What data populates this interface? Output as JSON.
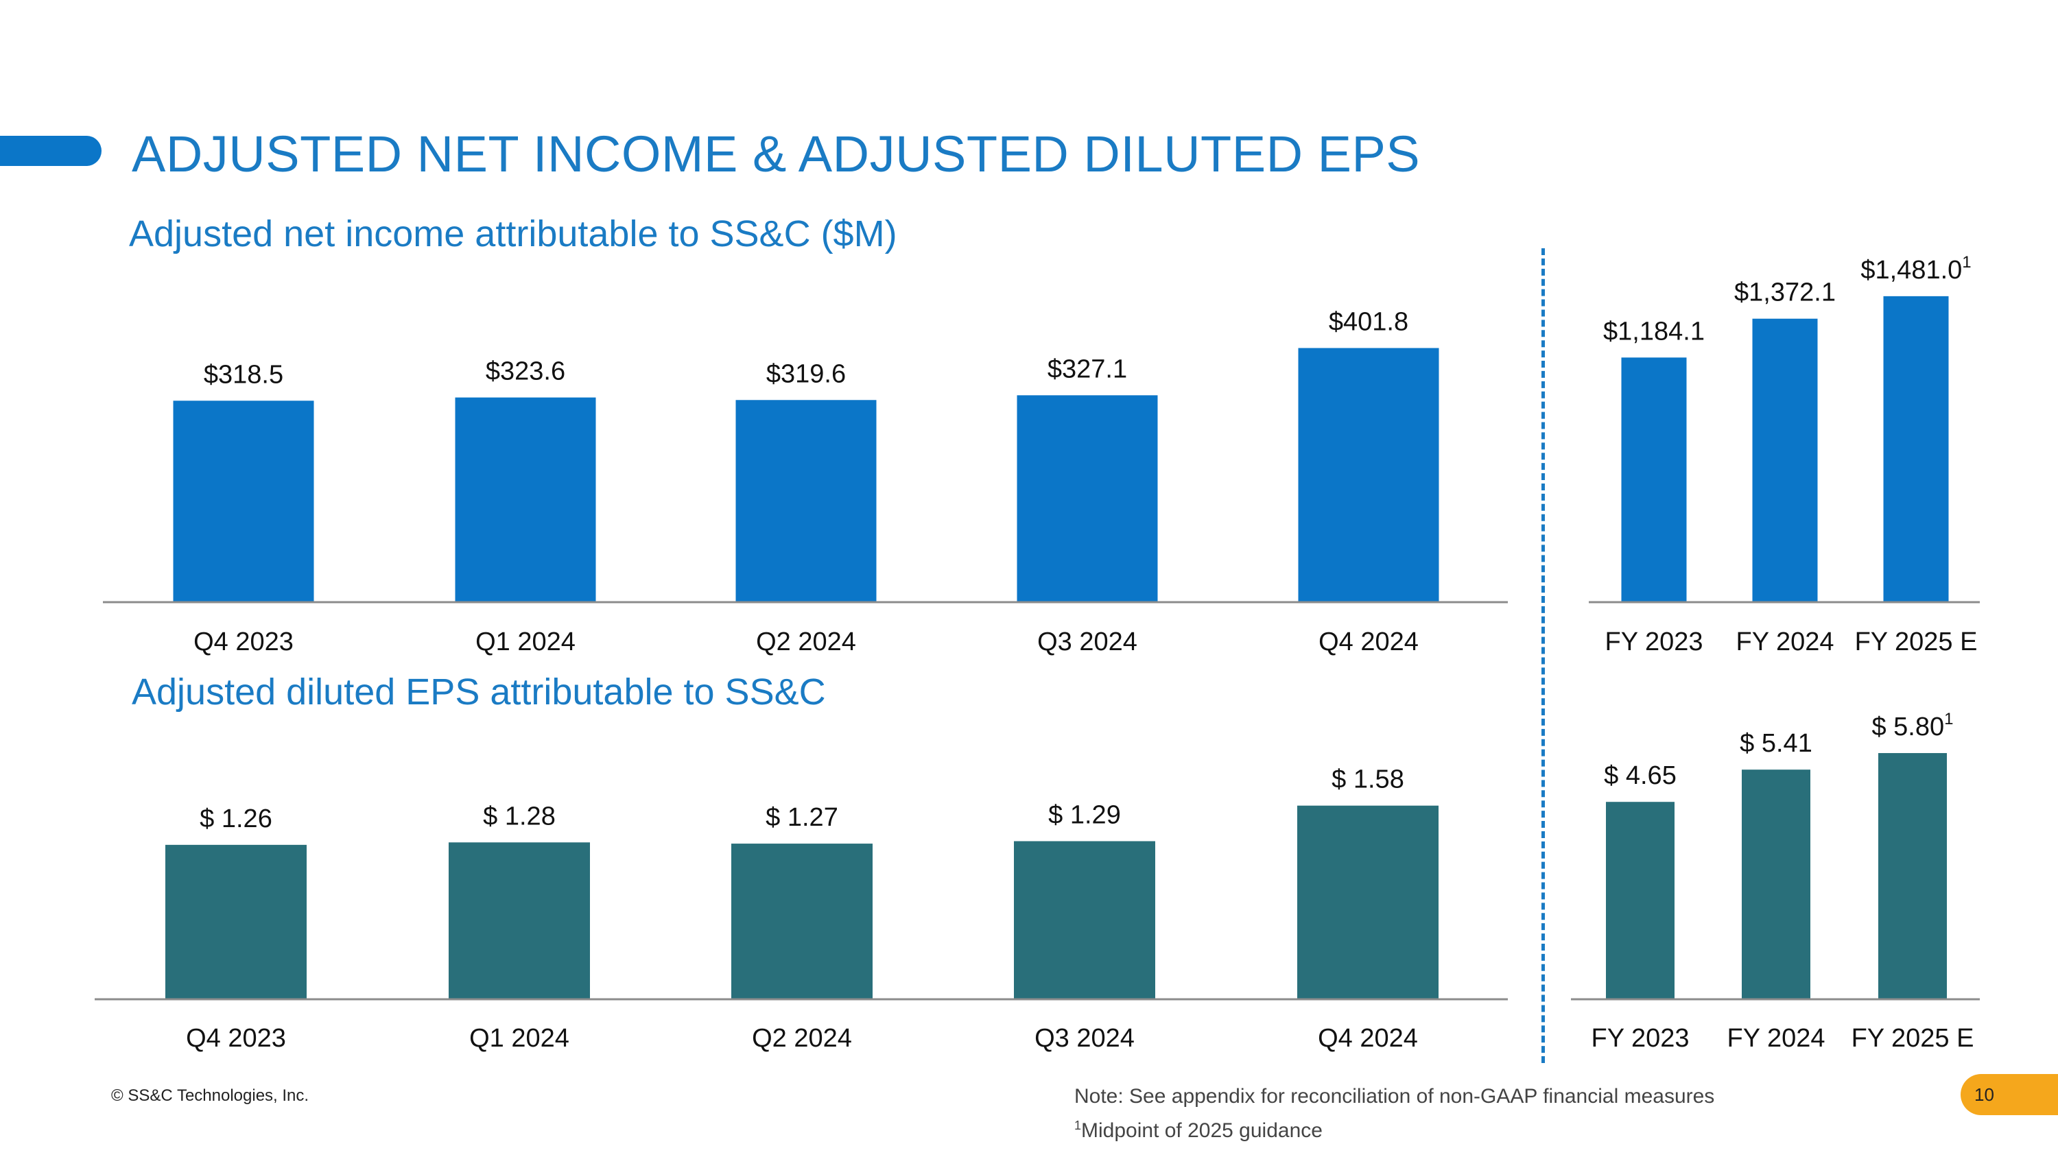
{
  "slide": {
    "title": "ADJUSTED NET INCOME & ADJUSTED DILUTED EPS",
    "copyright": "© SS&C Technologies, Inc.",
    "note": "Note: See appendix for reconciliation of non-GAAP financial measures",
    "footnote_marker": "1",
    "footnote_text": "Midpoint of 2025 guidance",
    "page_number": "10"
  },
  "colors": {
    "accent": "#0b76c8",
    "title": "#1a7bc4",
    "income_bar": "#0b76c8",
    "eps_bar": "#296f7a",
    "axis": "#8c8c8c",
    "badge": "#f5a71c"
  },
  "chart_data": [
    {
      "id": "income-quarterly",
      "type": "bar",
      "title": "Adjusted net income attributable to SS&C ($M)",
      "categories": [
        "Q4 2023",
        "Q1 2024",
        "Q2 2024",
        "Q3 2024",
        "Q4 2024"
      ],
      "values": [
        318.5,
        323.6,
        319.6,
        327.1,
        401.8
      ],
      "labels": [
        "$318.5",
        "$323.6",
        "$319.6",
        "$327.1",
        "$401.8"
      ],
      "footnotes": [
        "",
        "",
        "",
        "",
        ""
      ],
      "ylim": [
        0,
        450
      ],
      "xlabel": "",
      "ylabel": ""
    },
    {
      "id": "income-annual",
      "type": "bar",
      "title": "",
      "categories": [
        "FY 2023",
        "FY 2024",
        "FY 2025 E"
      ],
      "values": [
        1184.1,
        1372.1,
        1481.0
      ],
      "labels": [
        "$1,184.1",
        "$1,372.1",
        "$1,481.0"
      ],
      "footnotes": [
        "",
        "",
        "1"
      ],
      "ylim": [
        0,
        1620
      ],
      "xlabel": "",
      "ylabel": ""
    },
    {
      "id": "eps-quarterly",
      "type": "bar",
      "title": "Adjusted diluted EPS attributable to SS&C",
      "categories": [
        "Q4 2023",
        "Q1 2024",
        "Q2 2024",
        "Q3 2024",
        "Q4 2024"
      ],
      "values": [
        1.26,
        1.28,
        1.27,
        1.29,
        1.58
      ],
      "labels": [
        "$ 1.26",
        "$ 1.28",
        "$ 1.27",
        "$ 1.29",
        "$ 1.58"
      ],
      "footnotes": [
        "",
        "",
        "",
        "",
        ""
      ],
      "ylim": [
        0,
        1.83
      ],
      "xlabel": "",
      "ylabel": ""
    },
    {
      "id": "eps-annual",
      "type": "bar",
      "title": "",
      "categories": [
        "FY 2023",
        "FY 2024",
        "FY 2025 E"
      ],
      "values": [
        4.65,
        5.41,
        5.8
      ],
      "labels": [
        "$ 4.65",
        "$ 5.41",
        "$ 5.80"
      ],
      "footnotes": [
        "",
        "",
        "1"
      ],
      "ylim": [
        0,
        6.35
      ],
      "xlabel": "",
      "ylabel": ""
    }
  ]
}
